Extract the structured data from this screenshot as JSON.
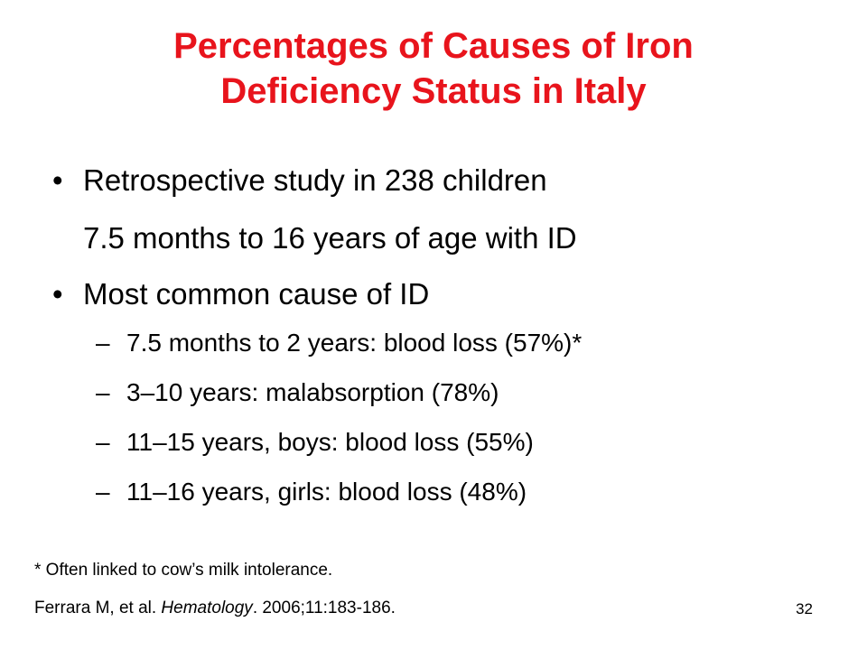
{
  "slide": {
    "title_line1": "Percentages of Causes of Iron",
    "title_line2": "Deficiency Status in Italy",
    "bullet1": "Retrospective study in 238 children",
    "bullet1_cont": "7.5 months to 16 years of age with ID",
    "bullet2": "Most common cause of ID",
    "sub_items": [
      "7.5 months to 2 years: blood loss (57%)*",
      "3–10 years: malabsorption (78%)",
      "11–15 years, boys: blood loss (55%)",
      "11–16 years, girls: blood loss (48%)"
    ],
    "bullet_glyph": "•",
    "dash_glyph": "–",
    "footnote": "* Often linked to cow’s milk intolerance.",
    "citation": {
      "authors": "Ferrara M, et al. ",
      "journal": "Hematology",
      "details": ". 2006;11:183-186."
    },
    "page_number": "32",
    "colors": {
      "title": "#e8141c",
      "text": "#000000",
      "background": "#ffffff"
    }
  }
}
